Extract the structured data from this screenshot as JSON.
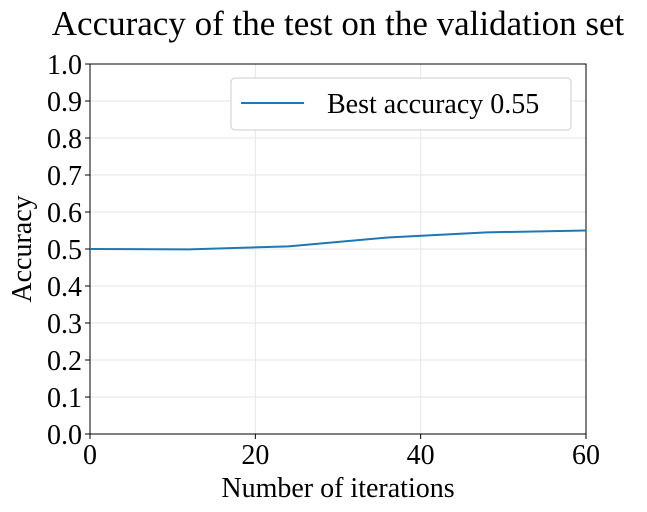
{
  "chart_data": {
    "type": "line",
    "title": "Accuracy of the test on the validation set",
    "xlabel": "Number of iterations",
    "ylabel": "Accuracy",
    "xlim": [
      0,
      60
    ],
    "ylim": [
      0.0,
      1.0
    ],
    "x_ticks": [
      0,
      20,
      40,
      60
    ],
    "x_tick_labels": [
      "0",
      "20",
      "40",
      "60"
    ],
    "y_ticks": [
      0.0,
      0.1,
      0.2,
      0.3,
      0.4,
      0.5,
      0.6,
      0.7,
      0.8,
      0.9,
      1.0
    ],
    "y_tick_labels": [
      "0.0",
      "0.1",
      "0.2",
      "0.3",
      "0.4",
      "0.5",
      "0.6",
      "0.7",
      "0.8",
      "0.9",
      "1.0"
    ],
    "grid": true,
    "legend_position": "top-right",
    "series": [
      {
        "name": "Best accuracy 0.55",
        "color": "#1f77b4",
        "x": [
          0,
          12,
          24,
          36,
          48,
          60
        ],
        "y": [
          0.5,
          0.499,
          0.507,
          0.531,
          0.545,
          0.55
        ]
      }
    ]
  }
}
